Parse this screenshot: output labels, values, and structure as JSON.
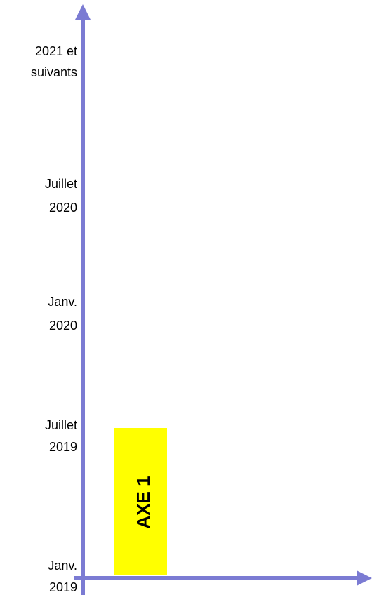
{
  "axis_labels": [
    [
      "2021 et",
      "suivants"
    ],
    [
      "Juillet",
      "2020"
    ],
    [
      "Janv.",
      "2020"
    ],
    [
      "Juillet",
      "2019"
    ],
    [
      "Janv.",
      "2019"
    ]
  ],
  "bar": {
    "label": "AXE 1"
  }
}
